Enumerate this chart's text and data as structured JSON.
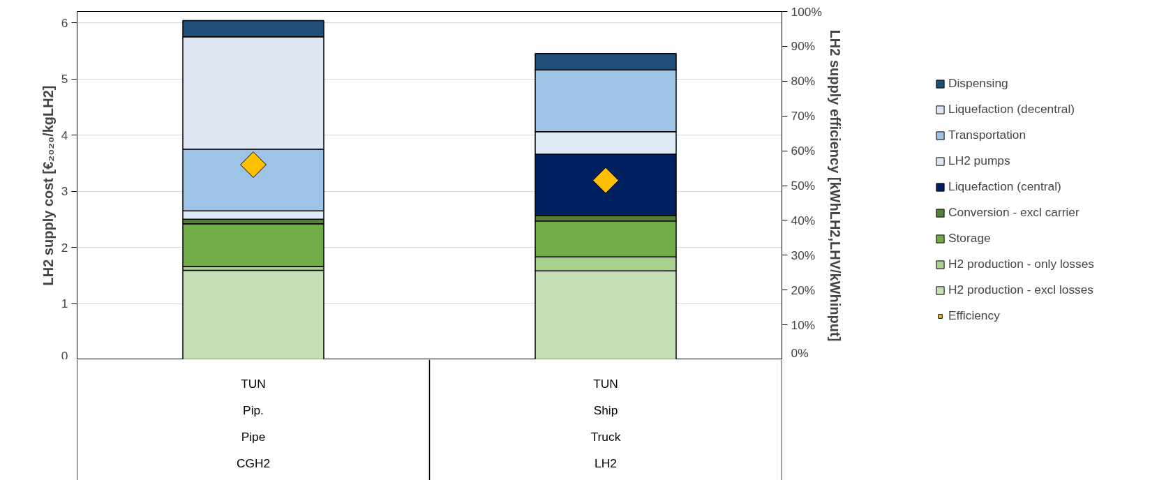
{
  "chart_data": {
    "type": "bar",
    "stacked": true,
    "categories": [
      "TUN\nPip.\nPipe\nCGH2",
      "TUN\nShip\nTruck\nLH2"
    ],
    "ylabel": "LH2 supply cost [€₂₀₂₀/kgLH2]",
    "y2label": "LH2 supply efficiency [kWhLH2,LHV/kWhinput]",
    "ylim": [
      0,
      6.2
    ],
    "yticks": [
      0,
      1,
      2,
      3,
      4,
      5,
      6
    ],
    "y2lim": [
      0,
      100
    ],
    "y2ticks": [
      {
        "value": 0,
        "label": "0%"
      },
      {
        "value": 10,
        "label": "10%"
      },
      {
        "value": 20,
        "label": "20%"
      },
      {
        "value": 30,
        "label": "30%"
      },
      {
        "value": 40,
        "label": "40%"
      },
      {
        "value": 50,
        "label": "50%"
      },
      {
        "value": 60,
        "label": "60%"
      },
      {
        "value": 70,
        "label": "70%"
      },
      {
        "value": 80,
        "label": "80%"
      },
      {
        "value": 90,
        "label": "90%"
      },
      {
        "value": 100,
        "label": "100%"
      }
    ],
    "grid": "y",
    "legend": "right",
    "series": [
      {
        "name": "H2 production - excl losses",
        "color": "#c5e0b4",
        "values": [
          1.59,
          1.58
        ]
      },
      {
        "name": "H2 production - only losses",
        "color": "#a9d18e",
        "values": [
          0.07,
          0.25
        ]
      },
      {
        "name": "Storage",
        "color": "#70ad47",
        "values": [
          0.76,
          0.64
        ]
      },
      {
        "name": "Conversion - excl carrier",
        "color": "#548235",
        "values": [
          0.08,
          0.1
        ]
      },
      {
        "name": "Liquefaction (central)",
        "color": "#002060",
        "values": [
          0,
          1.09
        ]
      },
      {
        "name": "LH2 pumps",
        "color": "#deebf7",
        "values": [
          0.15,
          0.4
        ]
      },
      {
        "name": "Transportation",
        "color": "#9dc3e6",
        "values": [
          1.1,
          1.1
        ]
      },
      {
        "name": "Liquefaction (decentral)",
        "color": "#dfe6f3",
        "values": [
          2.0,
          0
        ]
      },
      {
        "name": "Dispensing",
        "color": "#1f4e79",
        "values": [
          0.29,
          0.29
        ]
      },
      {
        "name": "Efficiency",
        "type": "scatter",
        "axis": "y2",
        "marker": "diamond",
        "color": "#ffc000",
        "values": [
          56,
          51.5
        ]
      }
    ]
  }
}
